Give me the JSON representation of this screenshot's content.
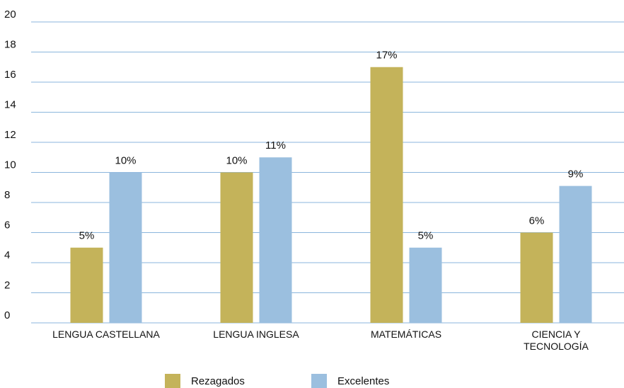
{
  "chart_data": {
    "type": "bar",
    "categories": [
      "LENGUA CASTELLANA",
      "LENGUA INGLESA",
      "MATEMÁTICAS",
      "CIENCIA Y\nTECNOLOGÍA"
    ],
    "series": [
      {
        "name": "Rezagados",
        "color": "#c4b35a",
        "values": [
          5,
          10,
          17,
          6
        ],
        "value_labels": [
          "5%",
          "10%",
          "17%",
          "6%"
        ]
      },
      {
        "name": "Excelentes",
        "color": "#9bbfdf",
        "values": [
          10,
          11,
          5,
          9.1
        ],
        "value_labels": [
          "10%",
          "11%",
          "5%",
          "9%"
        ]
      }
    ],
    "ylim": [
      0,
      20
    ],
    "yticks": [
      0,
      2,
      4,
      6,
      8,
      10,
      12,
      14,
      16,
      18,
      20
    ],
    "grid": true,
    "legend": "bottom"
  }
}
